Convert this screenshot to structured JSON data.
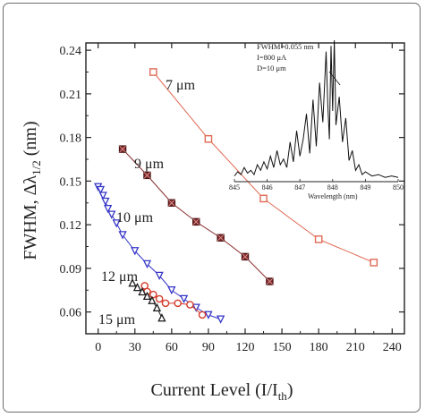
{
  "chart_data": {
    "type": "line",
    "xlabel_main": "Current Level (I/I",
    "xlabel_sub": "th",
    "xlabel_close": ")",
    "ylabel_main": "FWHM, Δλ",
    "ylabel_sub": "1/2",
    "ylabel_unit": " (nm)",
    "xlim": [
      -10,
      250
    ],
    "ylim": [
      0.045,
      0.245
    ],
    "xticks": [
      0,
      30,
      60,
      90,
      120,
      150,
      180,
      210,
      240
    ],
    "yticks": [
      0.06,
      0.09,
      0.12,
      0.15,
      0.18,
      0.21,
      0.24
    ],
    "series": [
      {
        "name": "7 μm",
        "color": "#e06a55",
        "marker": "square-open",
        "x": [
          45,
          90,
          135,
          180,
          225
        ],
        "y": [
          0.225,
          0.179,
          0.138,
          0.11,
          0.094
        ]
      },
      {
        "name": "9 μm",
        "color": "#8b2d2d",
        "marker": "square-filled",
        "x": [
          20,
          40,
          60,
          80,
          100,
          120,
          140
        ],
        "y": [
          0.172,
          0.154,
          0.135,
          0.122,
          0.111,
          0.098,
          0.081
        ]
      },
      {
        "name": "10 μm",
        "color": "#3535c8",
        "marker": "triangle-down",
        "x": [
          0,
          2,
          4,
          6,
          8,
          11,
          15,
          20,
          30,
          40,
          50,
          60,
          70,
          80,
          90,
          100
        ],
        "y": [
          0.146,
          0.144,
          0.14,
          0.136,
          0.131,
          0.127,
          0.121,
          0.113,
          0.102,
          0.093,
          0.085,
          0.075,
          0.069,
          0.063,
          0.058,
          0.055
        ]
      },
      {
        "name": "12 μm",
        "color": "#d43a2a",
        "marker": "circle-open",
        "x": [
          38,
          40,
          45,
          50,
          55,
          65,
          75,
          85
        ],
        "y": [
          0.078,
          0.074,
          0.072,
          0.069,
          0.066,
          0.066,
          0.065,
          0.058
        ]
      },
      {
        "name": "15 μm",
        "color": "#1a1a1a",
        "marker": "triangle-up",
        "x": [
          28,
          32,
          36,
          40,
          44,
          48,
          52
        ],
        "y": [
          0.08,
          0.077,
          0.074,
          0.071,
          0.068,
          0.063,
          0.056
        ]
      }
    ],
    "inset": {
      "xlabel": "Wavelength (nm)",
      "xticks": [
        "845",
        "846",
        "847",
        "848",
        "849",
        "850"
      ],
      "annotation": [
        "FWHM=0.055 nm",
        "I=800 μA",
        "D=10 μm"
      ],
      "xlim": [
        845,
        850
      ],
      "spectrum_x": [
        845.0,
        845.1,
        845.2,
        845.3,
        845.4,
        845.5,
        845.6,
        845.7,
        845.8,
        845.9,
        846.0,
        846.1,
        846.2,
        846.3,
        846.4,
        846.5,
        846.6,
        846.7,
        846.8,
        846.9,
        847.0,
        847.1,
        847.2,
        847.3,
        847.4,
        847.5,
        847.6,
        847.7,
        847.8,
        847.85,
        847.9,
        847.95,
        848.0,
        848.05,
        848.1,
        848.2,
        848.3,
        848.4,
        848.5,
        848.6,
        848.7,
        848.8,
        848.9,
        849.0,
        849.2,
        849.4,
        849.6,
        849.8,
        850.0
      ],
      "spectrum_y": [
        0.04,
        0.07,
        0.05,
        0.1,
        0.06,
        0.08,
        0.05,
        0.12,
        0.08,
        0.14,
        0.09,
        0.18,
        0.1,
        0.22,
        0.12,
        0.16,
        0.1,
        0.28,
        0.14,
        0.36,
        0.18,
        0.3,
        0.48,
        0.2,
        0.58,
        0.25,
        0.7,
        0.42,
        0.92,
        0.55,
        0.3,
        0.96,
        0.5,
        1.0,
        0.4,
        0.6,
        0.28,
        0.45,
        0.15,
        0.22,
        0.08,
        0.12,
        0.05,
        0.07,
        0.04,
        0.05,
        0.03,
        0.04,
        0.03
      ]
    }
  }
}
